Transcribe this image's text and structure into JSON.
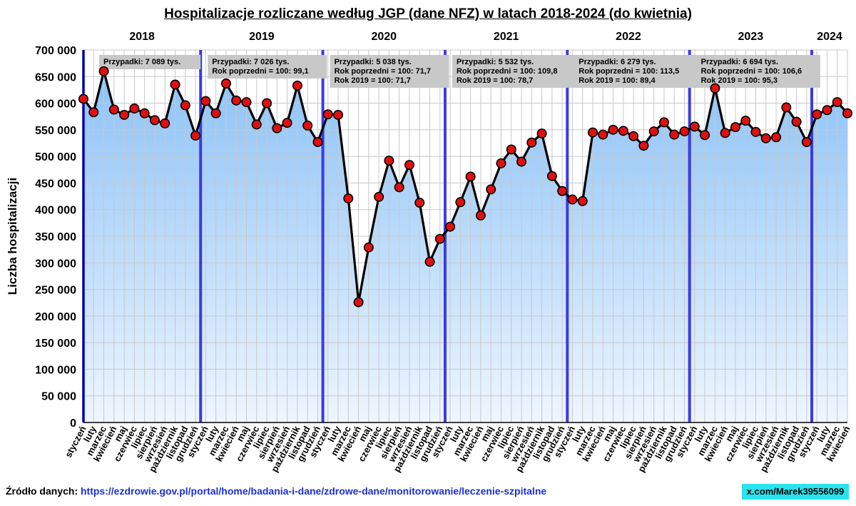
{
  "chart_data": {
    "type": "line",
    "title": "Hospitalizacje rozliczane według JGP (dane NFZ) w latach 2018-2024 (do kwietnia)",
    "ylabel": "Liczba hospitalizacji",
    "ylim": [
      0,
      700000
    ],
    "yticks": [
      0,
      50000,
      100000,
      150000,
      200000,
      250000,
      300000,
      350000,
      400000,
      450000,
      500000,
      550000,
      600000,
      650000,
      700000
    ],
    "ytick_labels": [
      "0",
      "50 000",
      "100 000",
      "150 000",
      "200 000",
      "250 000",
      "300 000",
      "350 000",
      "400 000",
      "450 000",
      "500 000",
      "550 000",
      "600 000",
      "650 000",
      "700 000"
    ],
    "month_names": [
      "styczeń",
      "luty",
      "marzec",
      "kwiecień",
      "maj",
      "czerwiec",
      "lipiec",
      "sierpień",
      "wrzesień",
      "październik",
      "listopad",
      "grudzień"
    ],
    "grid": true,
    "years": [
      {
        "year": "2018",
        "values": [
          608000,
          583000,
          660000,
          588000,
          578000,
          590000,
          581000,
          568000,
          562000,
          635000,
          596000,
          539000
        ],
        "annotation": [
          "Przypadki: 7 089 tys."
        ]
      },
      {
        "year": "2019",
        "values": [
          604000,
          581000,
          637000,
          605000,
          602000,
          560000,
          600000,
          553000,
          563000,
          633000,
          558000,
          527000
        ],
        "annotation": [
          "Przypadki: 7 026 tys.",
          "Rok poprzedni = 100: 99,1"
        ]
      },
      {
        "year": "2020",
        "values": [
          579000,
          578000,
          421000,
          226000,
          329000,
          424000,
          492000,
          442000,
          484000,
          413000,
          302000,
          345000
        ],
        "annotation": [
          "Przypadki: 5 038 tys.",
          "Rok poprzedni = 100: 71,7",
          "Rok 2019 = 100: 71,7"
        ]
      },
      {
        "year": "2021",
        "values": [
          368000,
          414000,
          462000,
          389000,
          438000,
          487000,
          513000,
          490000,
          526000,
          543000,
          463000,
          435000
        ],
        "annotation": [
          "Przypadki: 5 532 tys.",
          "Rok poprzedni = 100: 109,8",
          "Rok 2019 = 100: 78,7"
        ]
      },
      {
        "year": "2022",
        "values": [
          419000,
          416000,
          545000,
          541000,
          550000,
          548000,
          538000,
          520000,
          547000,
          564000,
          541000,
          547000
        ],
        "annotation": [
          "Przypadki: 6 279 tys.",
          "Rok poprzedni = 100: 113,5",
          "Rok 2019 = 100: 89,4"
        ]
      },
      {
        "year": "2023",
        "values": [
          556000,
          540000,
          628000,
          544000,
          555000,
          567000,
          546000,
          534000,
          536000,
          592000,
          565000,
          527000
        ],
        "annotation": [
          "Przypadki: 6 694 tys.",
          "Rok poprzedni = 100: 106,6",
          "Rok 2019 = 100: 95,3"
        ]
      },
      {
        "year": "2024",
        "values": [
          579000,
          587000,
          602000,
          581000
        ],
        "annotation": []
      }
    ]
  },
  "footer": {
    "source_label": "Źródło danych: ",
    "source_url": "https://ezdrowie.gov.pl/portal/home/badania-i-dane/zdrowe-dane/monitorowanie/leczenie-szpitalne",
    "credit": "x.com/Marek39556099"
  },
  "colors": {
    "line": "#000000",
    "marker_fill": "#e01010",
    "year_divider": "#3a3ae6",
    "area_top": "#8cc2f7",
    "area_bottom": "#eef6ff",
    "annotation_bg": "#c8c8c8",
    "grid": "#c8c8c8"
  }
}
